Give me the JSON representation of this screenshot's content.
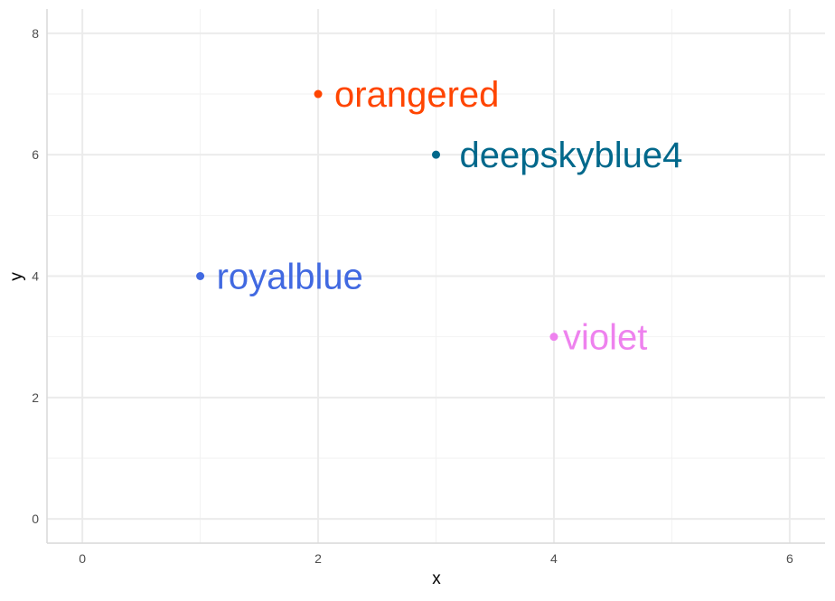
{
  "chart_data": {
    "type": "scatter",
    "title": "",
    "xlabel": "x",
    "ylabel": "y",
    "xlim": [
      -0.3,
      6.3
    ],
    "ylim": [
      -0.4,
      8.4
    ],
    "xticks": [
      0,
      2,
      4,
      6
    ],
    "yticks": [
      0,
      2,
      4,
      6,
      8
    ],
    "xtick_labels": [
      "0",
      "2",
      "4",
      "6"
    ],
    "ytick_labels": [
      "0",
      "2",
      "4",
      "6",
      "8"
    ],
    "grid": true,
    "points": [
      {
        "x": 1,
        "y": 4,
        "label": "royalblue",
        "color": "#4169E1"
      },
      {
        "x": 2,
        "y": 7,
        "label": "orangered",
        "color": "#FF4500"
      },
      {
        "x": 3,
        "y": 6,
        "label": "deepskyblue4",
        "color": "#00688B"
      },
      {
        "x": 4,
        "y": 3,
        "label": "violet",
        "color": "#EE82EE"
      }
    ]
  }
}
